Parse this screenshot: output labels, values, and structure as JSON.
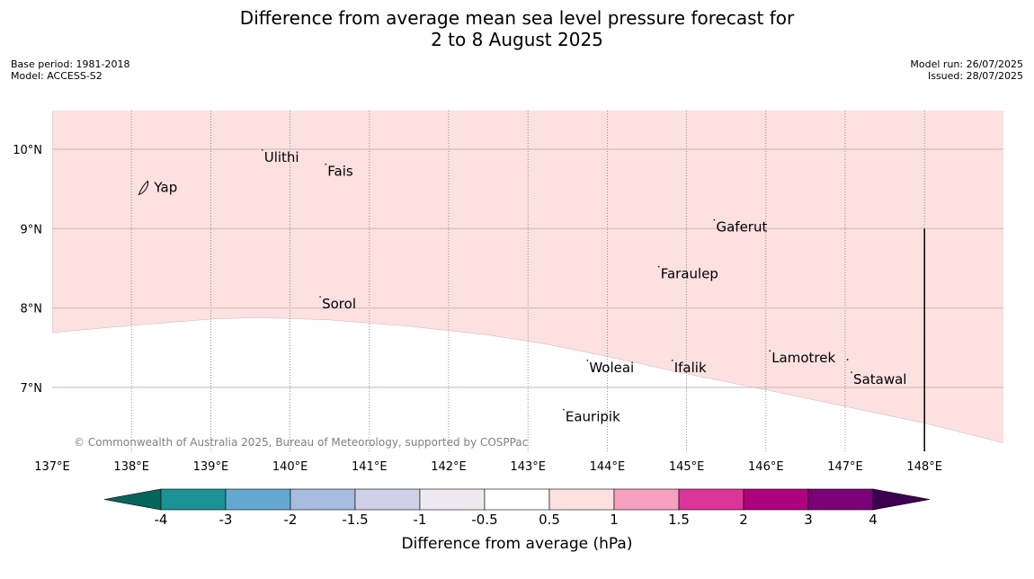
{
  "title": {
    "line1": "Difference from average mean sea level pressure forecast for",
    "line2": "2 to 8 August 2025"
  },
  "meta_left": {
    "base_period": "Base period: 1981-2018",
    "model": "Model: ACCESS-S2"
  },
  "meta_right": {
    "model_run": "Model run: 26/07/2025",
    "issued": "Issued: 28/07/2025"
  },
  "map": {
    "lon_range": [
      137,
      149
    ],
    "lat_range": [
      6.3,
      10.5
    ],
    "lon_ticks": [
      {
        "value": 137,
        "label": "137°E"
      },
      {
        "value": 138,
        "label": "138°E"
      },
      {
        "value": 139,
        "label": "139°E"
      },
      {
        "value": 140,
        "label": "140°E"
      },
      {
        "value": 141,
        "label": "141°E"
      },
      {
        "value": 142,
        "label": "142°E"
      },
      {
        "value": 143,
        "label": "143°E"
      },
      {
        "value": 144,
        "label": "144°E"
      },
      {
        "value": 145,
        "label": "145°E"
      },
      {
        "value": 146,
        "label": "146°E"
      },
      {
        "value": 147,
        "label": "147°E"
      },
      {
        "value": 148,
        "label": "148°E"
      }
    ],
    "lat_ticks": [
      {
        "value": 10,
        "label": "10°N"
      },
      {
        "value": 9,
        "label": "9°N"
      },
      {
        "value": 8,
        "label": "8°N"
      },
      {
        "value": 7,
        "label": "7°N"
      }
    ],
    "anomaly_fill_color": "#fde0e0",
    "anomaly_category": "0.5 to 1 hPa",
    "anomaly_boundary": [
      {
        "lon": 137.0,
        "lat": 7.69
      },
      {
        "lon": 138.0,
        "lat": 7.78
      },
      {
        "lon": 139.0,
        "lat": 7.86
      },
      {
        "lon": 139.6,
        "lat": 7.88
      },
      {
        "lon": 140.5,
        "lat": 7.85
      },
      {
        "lon": 141.5,
        "lat": 7.77
      },
      {
        "lon": 142.5,
        "lat": 7.66
      },
      {
        "lon": 143.2,
        "lat": 7.55
      },
      {
        "lon": 144.0,
        "lat": 7.39
      },
      {
        "lon": 145.0,
        "lat": 7.17
      },
      {
        "lon": 146.0,
        "lat": 6.97
      },
      {
        "lon": 147.0,
        "lat": 6.76
      },
      {
        "lon": 148.0,
        "lat": 6.55
      },
      {
        "lon": 149.0,
        "lat": 6.3
      }
    ],
    "divider_line": {
      "lon": 148.0,
      "lat_top": 9.0
    },
    "places": [
      {
        "name": "Yap",
        "lon": 138.15,
        "lat": 9.52,
        "island": true
      },
      {
        "name": "Ulithi",
        "lon": 139.65,
        "lat": 9.9
      },
      {
        "name": "Fais",
        "lon": 140.45,
        "lat": 9.72
      },
      {
        "name": "Gaferut",
        "lon": 145.35,
        "lat": 9.02
      },
      {
        "name": "Faraulep",
        "lon": 144.65,
        "lat": 8.43
      },
      {
        "name": "Sorol",
        "lon": 140.38,
        "lat": 8.05
      },
      {
        "name": "Lamotrek",
        "lon": 146.05,
        "lat": 7.37
      },
      {
        "name": "Satawal",
        "lon": 147.08,
        "lat": 7.1
      },
      {
        "name": "Woleai",
        "lon": 143.75,
        "lat": 7.25
      },
      {
        "name": "Ifalik",
        "lon": 144.82,
        "lat": 7.25
      },
      {
        "name": "Eauripik",
        "lon": 143.45,
        "lat": 6.63
      }
    ],
    "credit": "© Commonwealth of Australia 2025, Bureau of Meteorology, supported by COSPPac"
  },
  "colorbar": {
    "label": "Difference from average (hPa)",
    "tick_labels": [
      "-4",
      "-3",
      "-2",
      "-1.5",
      "-1",
      "-0.5",
      "0.5",
      "1",
      "1.5",
      "2",
      "3",
      "4"
    ],
    "low_extend_color": "#04665a",
    "high_extend_color": "#3d0051",
    "colors": [
      "#1b9294",
      "#64a8d0",
      "#a7bcde",
      "#cfd0e6",
      "#efeaf1",
      "#ffffff",
      "#fde0e0",
      "#f8a0bf",
      "#dd3597",
      "#ae017e",
      "#7a0177"
    ]
  }
}
